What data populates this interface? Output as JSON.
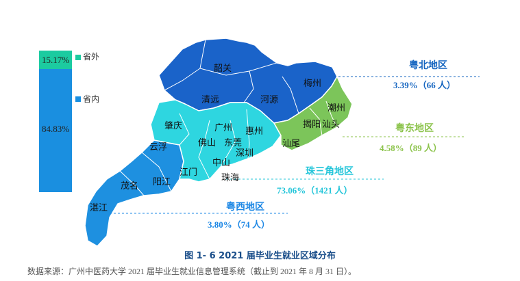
{
  "stacked_bar": {
    "outside": {
      "label": "省外",
      "value_text": "15.17%",
      "color": "#1ccba0"
    },
    "inside": {
      "label": "省内",
      "value_text": "84.83%",
      "color": "#1a8fe0"
    }
  },
  "cities": {
    "shaoguan": "韶关",
    "qingyuan": "清远",
    "heyuan": "河源",
    "meizhou": "梅州",
    "chaozhou": "潮州",
    "jieyang": "揭阳",
    "shantou": "汕头",
    "shanwei": "汕尾",
    "zhaoqing": "肇庆",
    "guangzhou": "广州",
    "huizhou": "惠州",
    "foshan": "佛山",
    "dongguan": "东莞",
    "shenzhen": "深圳",
    "yunfu": "云浮",
    "jiangmen": "江门",
    "zhongshan": "中山",
    "zhuhai": "珠海",
    "maoming": "茂名",
    "yangjiang": "阳江",
    "zhanjiang": "湛江"
  },
  "regions": {
    "north": {
      "name": "粤北地区",
      "value": "3.39%（66 人）",
      "color": "#1565c0"
    },
    "east": {
      "name": "粤东地区",
      "value": "4.58%（89 人）",
      "color": "#8bc34a"
    },
    "delta": {
      "name": "珠三角地区",
      "value": "73.06%（1421 人）",
      "color": "#26c6da"
    },
    "west": {
      "name": "粤西地区",
      "value": "3.80%（74 人）",
      "color": "#1e88e5"
    }
  },
  "colors": {
    "north_fill": "#1a63c9",
    "east_fill": "#7cc55a",
    "delta_fill": "#2ed6e0",
    "west_fill": "#1e90e0"
  },
  "caption": "图 1- 6  2021 届毕业生就业区域分布",
  "source": "数据来源：广州中医药大学 2021 届毕业生就业信息管理系统（截止到 2021 年 8 月 31 日）。"
}
